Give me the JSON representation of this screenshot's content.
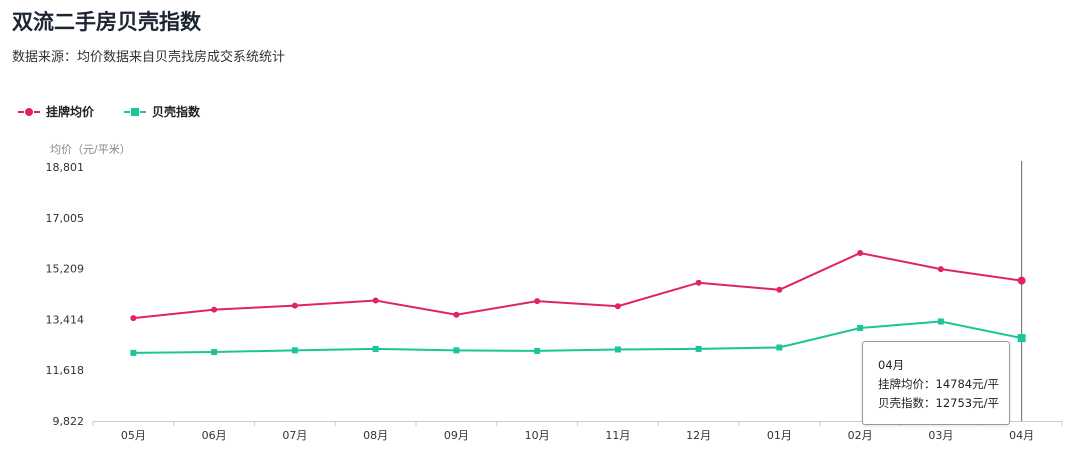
{
  "title": "双流二手房贝壳指数",
  "subtitle": "数据来源：均价数据来自贝壳找房成交系统统计",
  "colors": {
    "listing": "#e0245e",
    "index": "#1bc598",
    "grid": "#e6e6e6",
    "axis": "#cccccc"
  },
  "tooltip": {
    "month": "04月",
    "listing_line": "挂牌均价：14784元/平",
    "index_line": "贝壳指数：12753元/平"
  },
  "chart_data": {
    "type": "line",
    "ylabel": "均价（元/平米）",
    "categories": [
      "05月",
      "06月",
      "07月",
      "08月",
      "09月",
      "10月",
      "11月",
      "12月",
      "01月",
      "02月",
      "03月",
      "04月"
    ],
    "yticks": [
      "9,822",
      "11,618",
      "13,414",
      "15,209",
      "17,005",
      "18,801"
    ],
    "ylim": [
      9822,
      18801
    ],
    "legend_position": "top-left",
    "series": [
      {
        "name": "挂牌均价",
        "marker": "circle",
        "values": [
          13460,
          13760,
          13900,
          14080,
          13580,
          14060,
          13880,
          14710,
          14460,
          15760,
          15190,
          14784
        ]
      },
      {
        "name": "贝壳指数",
        "marker": "square",
        "values": [
          12230,
          12260,
          12320,
          12370,
          12320,
          12300,
          12350,
          12370,
          12420,
          13110,
          13340,
          12753
        ]
      }
    ]
  }
}
